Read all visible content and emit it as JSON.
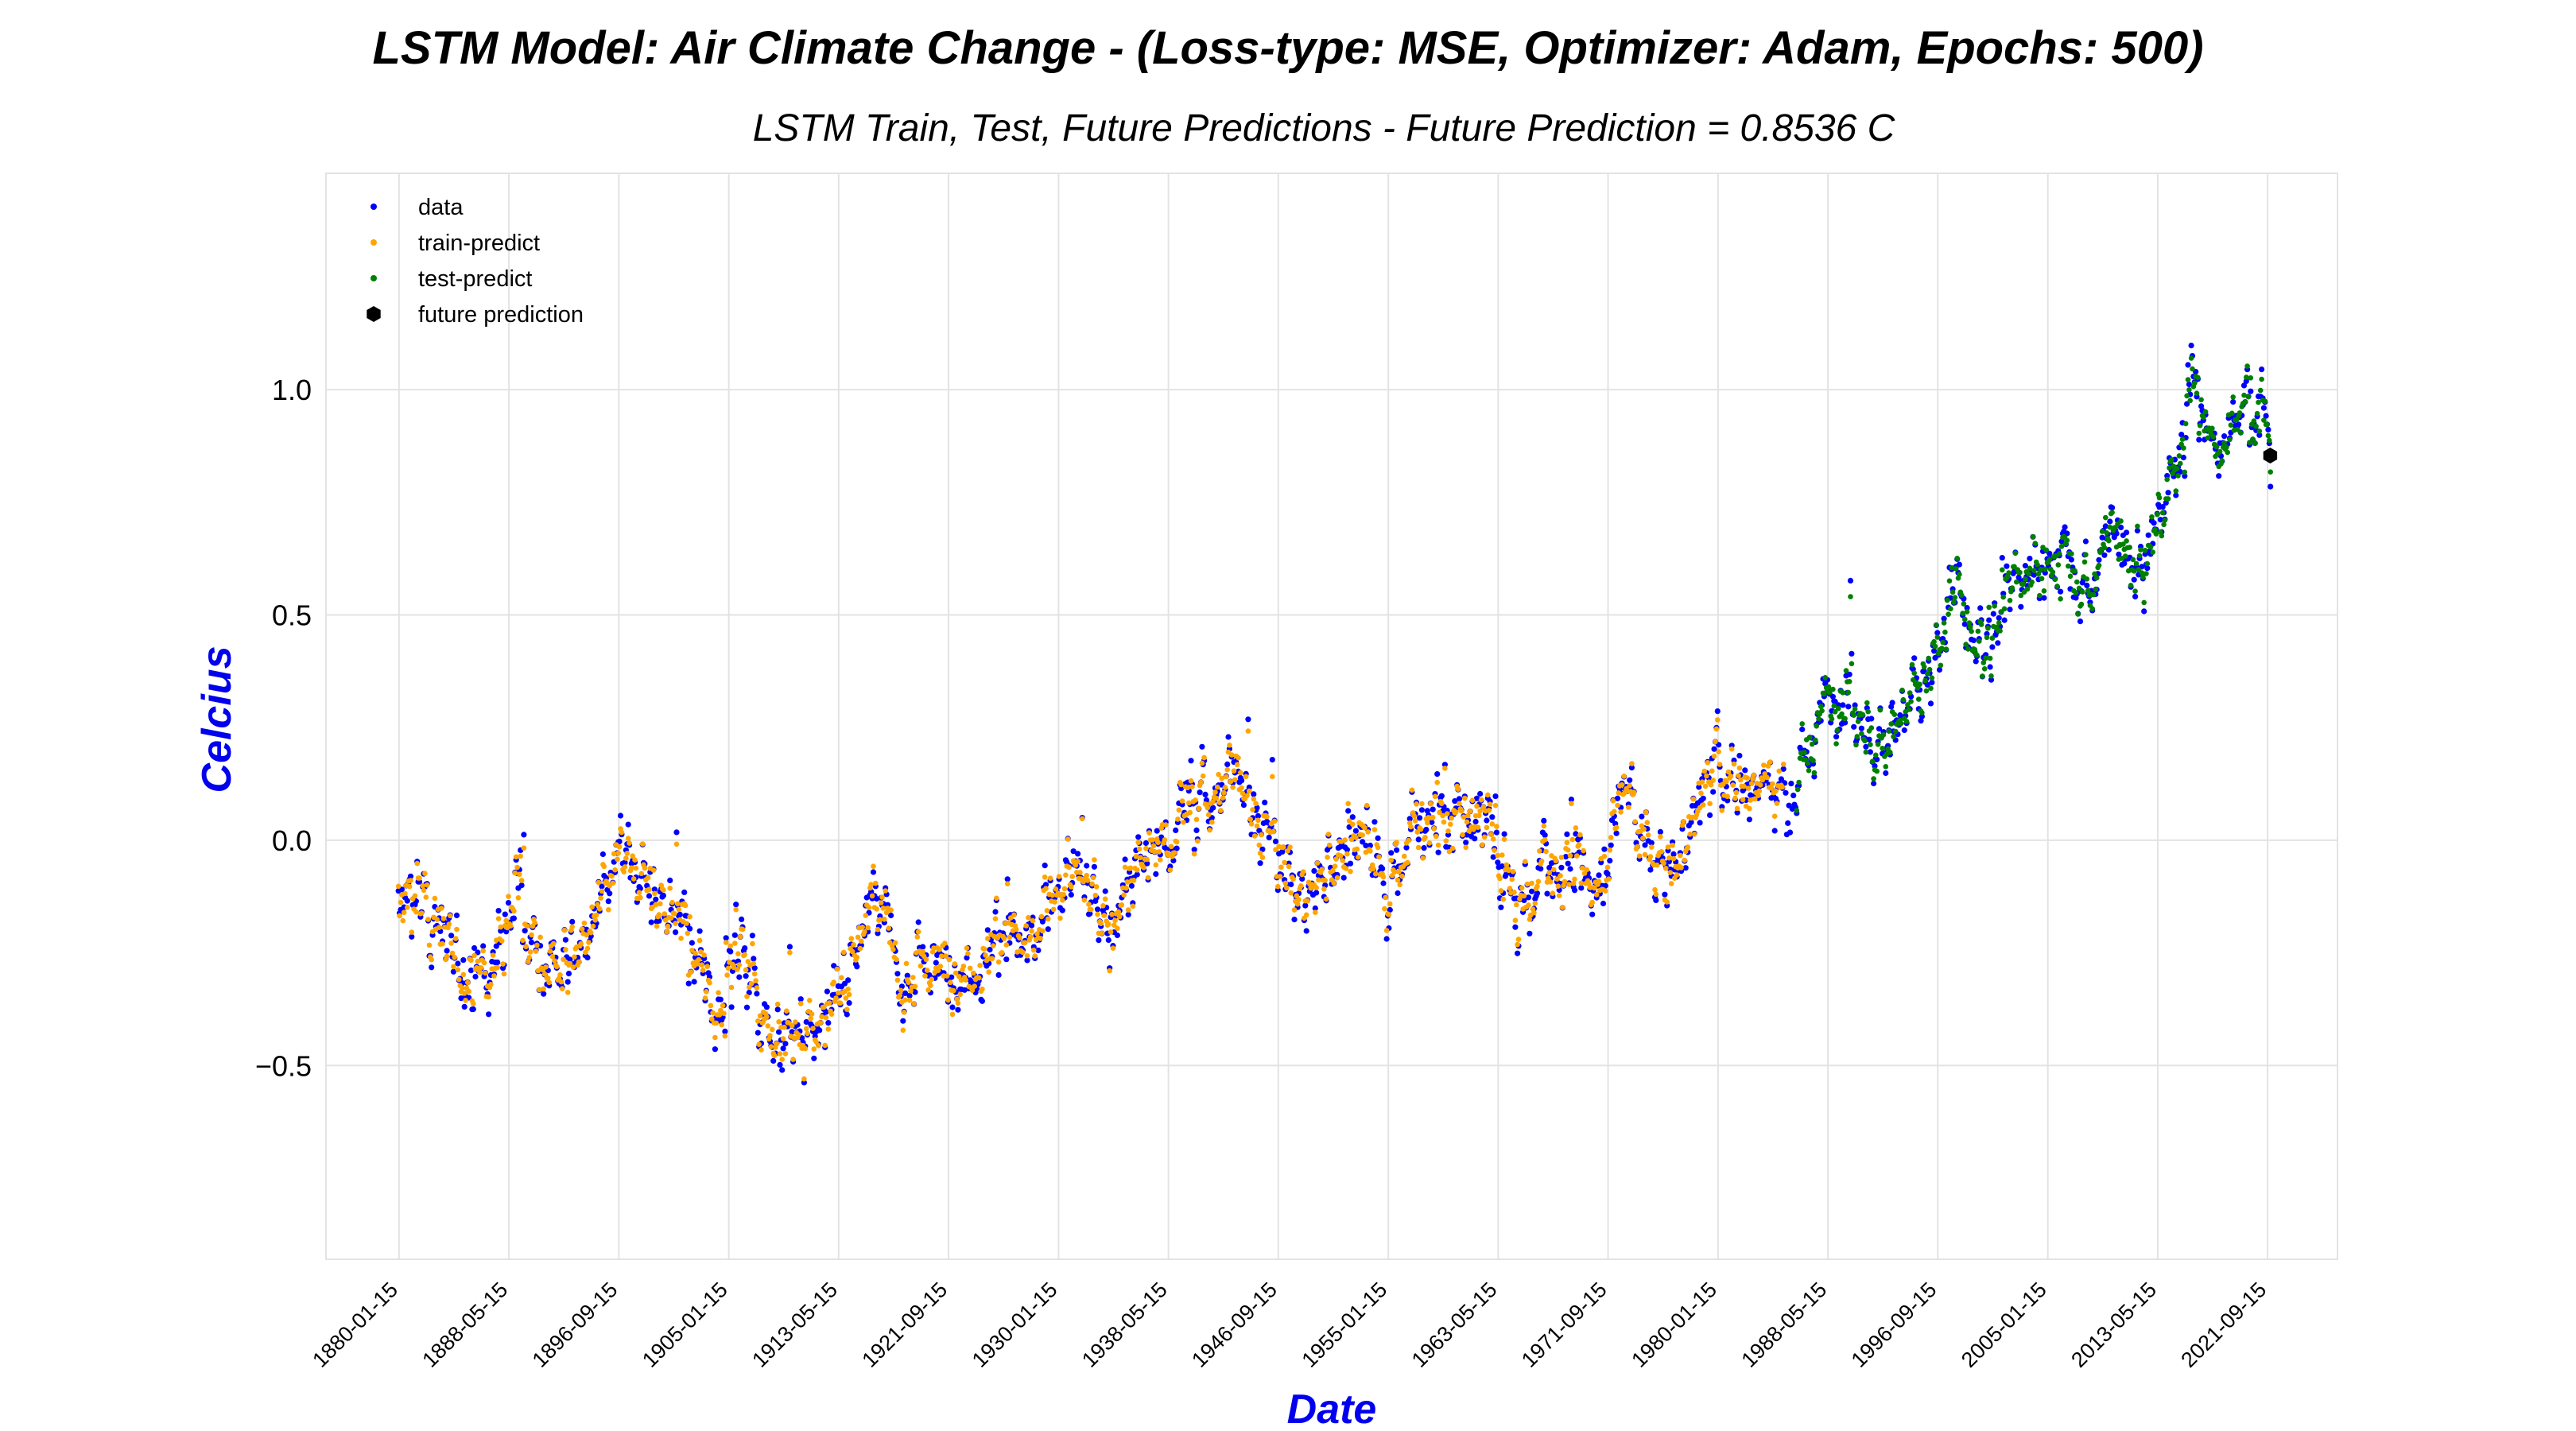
{
  "chart_data": {
    "type": "scatter",
    "title": "LSTM Model: Air Climate Change - (Loss-type: MSE, Optimizer: Adam, Epochs: 500)",
    "subtitle": "LSTM Train, Test, Future Predictions - Future Prediction = 0.8536 C",
    "xlabel": "Date",
    "ylabel": "Celcius",
    "ylim": [
      -0.93,
      1.48
    ],
    "xlim": [
      1874.5,
      2027.0
    ],
    "grid": true,
    "legend_position": "top-left",
    "y_ticks": [
      -0.5,
      0.0,
      0.5,
      1.0
    ],
    "y_tick_labels": [
      "−0.5",
      "0.0",
      "0.5",
      "1.0"
    ],
    "x_ticks": [
      1880.04,
      1888.37,
      1896.7,
      1905.04,
      1913.37,
      1921.7,
      1930.04,
      1938.37,
      1946.7,
      1955.04,
      1963.37,
      1971.7,
      1980.04,
      1988.37,
      1996.7,
      2005.04,
      2013.37,
      2021.7
    ],
    "x_tick_labels": [
      "1880-01-15",
      "1888-05-15",
      "1896-09-15",
      "1905-01-15",
      "1913-05-15",
      "1921-09-15",
      "1930-01-15",
      "1938-05-15",
      "1946-09-15",
      "1955-01-15",
      "1963-05-15",
      "1971-09-15",
      "1980-01-15",
      "1988-05-15",
      "1996-09-15",
      "2005-01-15",
      "2013-05-15",
      "2021-09-15"
    ],
    "series": [
      {
        "name": "data",
        "color": "#0000ff",
        "x_start": 1880.0,
        "x_end": 2021.9,
        "note_x": "monthly"
      },
      {
        "name": "train-predict",
        "color": "#ffa500",
        "x_start": 1880.0,
        "x_end": 1985.0
      },
      {
        "name": "test-predict",
        "color": "#008000",
        "x_start": 1986.0,
        "x_end": 2021.9
      },
      {
        "name": "future prediction",
        "color": "#000000",
        "x": 2021.9,
        "y": 0.8536
      }
    ],
    "trend_anchors": [
      [
        1880,
        -0.16
      ],
      [
        1882,
        -0.12
      ],
      [
        1884,
        -0.28
      ],
      [
        1887,
        -0.3
      ],
      [
        1889,
        -0.1
      ],
      [
        1891,
        -0.3
      ],
      [
        1894,
        -0.24
      ],
      [
        1897,
        -0.06
      ],
      [
        1899,
        -0.1
      ],
      [
        1901,
        -0.15
      ],
      [
        1904,
        -0.38
      ],
      [
        1906,
        -0.22
      ],
      [
        1908,
        -0.4
      ],
      [
        1911,
        -0.45
      ],
      [
        1914,
        -0.3
      ],
      [
        1916,
        -0.08
      ],
      [
        1918,
        -0.32
      ],
      [
        1920,
        -0.28
      ],
      [
        1924,
        -0.27
      ],
      [
        1926,
        -0.2
      ],
      [
        1928,
        -0.25
      ],
      [
        1930,
        -0.1
      ],
      [
        1932,
        -0.1
      ],
      [
        1934,
        -0.18
      ],
      [
        1936,
        -0.05
      ],
      [
        1938,
        -0.02
      ],
      [
        1940,
        0.08
      ],
      [
        1942,
        0.1
      ],
      [
        1944,
        0.18
      ],
      [
        1945,
        0.05
      ],
      [
        1947,
        -0.05
      ],
      [
        1949,
        -0.12
      ],
      [
        1951,
        -0.05
      ],
      [
        1953,
        0.05
      ],
      [
        1955,
        -0.15
      ],
      [
        1957,
        0.05
      ],
      [
        1959,
        0.02
      ],
      [
        1961,
        0.05
      ],
      [
        1963,
        0.02
      ],
      [
        1965,
        -0.15
      ],
      [
        1967,
        -0.05
      ],
      [
        1969,
        -0.05
      ],
      [
        1971,
        -0.1
      ],
      [
        1973,
        0.12
      ],
      [
        1976,
        -0.1
      ],
      [
        1978,
        0.05
      ],
      [
        1980,
        0.18
      ],
      [
        1982,
        0.12
      ],
      [
        1984,
        0.15
      ],
      [
        1986,
        0.12
      ],
      [
        1988,
        0.3
      ],
      [
        1990,
        0.35
      ],
      [
        1992,
        0.18
      ],
      [
        1994,
        0.28
      ],
      [
        1996,
        0.35
      ],
      [
        1998,
        0.55
      ],
      [
        2000,
        0.4
      ],
      [
        2002,
        0.6
      ],
      [
        2004,
        0.58
      ],
      [
        2006,
        0.62
      ],
      [
        2008,
        0.55
      ],
      [
        2010,
        0.7
      ],
      [
        2012,
        0.62
      ],
      [
        2014,
        0.72
      ],
      [
        2016,
        1.0
      ],
      [
        2018,
        0.85
      ],
      [
        2020,
        1.0
      ],
      [
        2021.9,
        0.88
      ]
    ]
  }
}
